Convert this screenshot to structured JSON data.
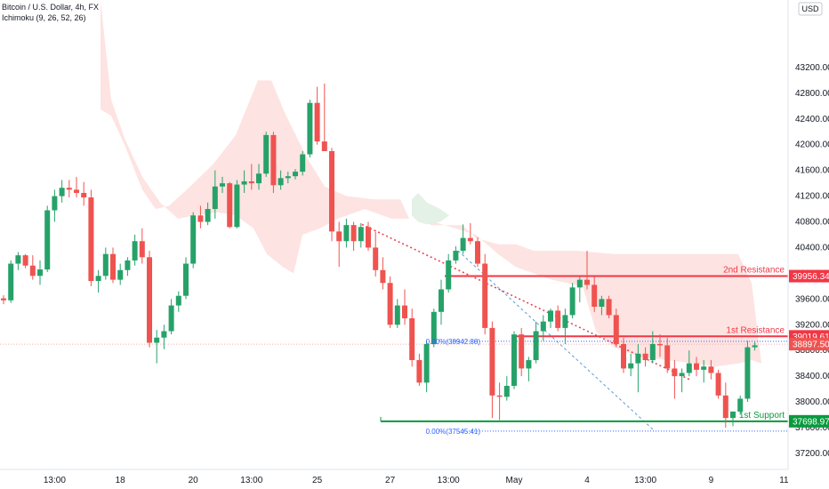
{
  "header": {
    "symbol": "Bitcoin / U.S. Dollar, 4h, FX",
    "indicator": "Ichimoku (9, 26, 52, 26)",
    "currency": "USD"
  },
  "chart_data": {
    "type": "candlestick",
    "y_axis": {
      "ylim": [
        36950,
        44250
      ],
      "ticks": [
        37200,
        37600,
        38000,
        38400,
        38800,
        39200,
        39600,
        40000,
        40400,
        40800,
        41200,
        41600,
        42000,
        42400,
        42800,
        43200
      ],
      "tick_labels": [
        "37200.00",
        "37600.00",
        "38000.00",
        "38400.00",
        "38800.00",
        "39200.00",
        "39600.00",
        "40000.00",
        "40400.00",
        "40800.00",
        "41200.00",
        "41600.00",
        "42000.00",
        "42400.00",
        "42800.00",
        "43200.00"
      ]
    },
    "x_axis": {
      "bars": 107,
      "ticks": [
        {
          "label": "13:00",
          "bar": 7
        },
        {
          "label": "18",
          "bar": 16
        },
        {
          "label": "20",
          "bar": 26
        },
        {
          "label": "13:00",
          "bar": 34
        },
        {
          "label": "25",
          "bar": 43
        },
        {
          "label": "27",
          "bar": 53
        },
        {
          "label": "13:00",
          "bar": 61
        },
        {
          "label": "May",
          "bar": 70
        },
        {
          "label": "4",
          "bar": 80
        },
        {
          "label": "13:00",
          "bar": 88
        },
        {
          "label": "9",
          "bar": 97
        },
        {
          "label": "11",
          "bar": 107
        }
      ]
    },
    "colors": {
      "up": "#26a269",
      "down": "#ef5350",
      "cloud_bear": "#fde3e1",
      "cloud_bull": "#e3f1e6",
      "resistance": "#f23645",
      "support": "#089a3d",
      "fib": "#2962ff"
    },
    "candles": [
      [
        39610,
        39660,
        39520,
        39580
      ],
      [
        39580,
        40200,
        39540,
        40150
      ],
      [
        40150,
        40330,
        40050,
        40280
      ],
      [
        40280,
        40300,
        40080,
        40120
      ],
      [
        40120,
        40280,
        39900,
        39960
      ],
      [
        39960,
        40200,
        39820,
        40060
      ],
      [
        40060,
        41050,
        40020,
        40980
      ],
      [
        40980,
        41300,
        40800,
        41200
      ],
      [
        41200,
        41450,
        41100,
        41330
      ],
      [
        41330,
        41450,
        41180,
        41300
      ],
      [
        41300,
        41500,
        41180,
        41250
      ],
      [
        41250,
        41420,
        41050,
        41180
      ],
      [
        41180,
        41300,
        39800,
        39880
      ],
      [
        39880,
        40050,
        39700,
        39960
      ],
      [
        39960,
        40400,
        39900,
        40300
      ],
      [
        40300,
        40400,
        39850,
        39900
      ],
      [
        39900,
        40150,
        39820,
        40050
      ],
      [
        40050,
        40250,
        39960,
        40200
      ],
      [
        40200,
        40600,
        40120,
        40500
      ],
      [
        40500,
        40700,
        40150,
        40250
      ],
      [
        40250,
        40350,
        38850,
        38920
      ],
      [
        38920,
        39120,
        38600,
        39000
      ],
      [
        39000,
        39200,
        38820,
        39100
      ],
      [
        39100,
        39600,
        39050,
        39500
      ],
      [
        39500,
        39720,
        39400,
        39650
      ],
      [
        39650,
        40250,
        39600,
        40150
      ],
      [
        40150,
        40950,
        40080,
        40900
      ],
      [
        40900,
        41050,
        40700,
        40800
      ],
      [
        40800,
        41100,
        40750,
        41000
      ],
      [
        41000,
        41600,
        40850,
        41350
      ],
      [
        41350,
        41500,
        41250,
        41400
      ],
      [
        41400,
        41420,
        40700,
        40720
      ],
      [
        40720,
        41450,
        40700,
        41380
      ],
      [
        41380,
        41600,
        41250,
        41430
      ],
      [
        41430,
        41700,
        41300,
        41400
      ],
      [
        41400,
        41700,
        41300,
        41550
      ],
      [
        41550,
        42200,
        41500,
        42150
      ],
      [
        42150,
        42200,
        41250,
        41370
      ],
      [
        41370,
        41600,
        41300,
        41480
      ],
      [
        41480,
        41580,
        41400,
        41510
      ],
      [
        41510,
        41620,
        41460,
        41580
      ],
      [
        41580,
        41900,
        41520,
        41850
      ],
      [
        41850,
        42700,
        41800,
        42650
      ],
      [
        42650,
        42900,
        42000,
        42050
      ],
      [
        42050,
        42950,
        41950,
        41900
      ],
      [
        41900,
        41950,
        40500,
        40650
      ],
      [
        40650,
        40800,
        40100,
        40500
      ],
      [
        40500,
        40850,
        40400,
        40750
      ],
      [
        40750,
        40800,
        40350,
        40500
      ],
      [
        40500,
        40780,
        40400,
        40720
      ],
      [
        40720,
        40800,
        40350,
        40400
      ],
      [
        40400,
        40650,
        39950,
        40050
      ],
      [
        40050,
        40250,
        39750,
        39850
      ],
      [
        39850,
        39950,
        39150,
        39200
      ],
      [
        39200,
        39600,
        39150,
        39500
      ],
      [
        39500,
        39750,
        39200,
        39300
      ],
      [
        39300,
        39450,
        38550,
        38650
      ],
      [
        38650,
        38750,
        38250,
        38300
      ],
      [
        38300,
        38950,
        38150,
        38900
      ],
      [
        38900,
        39450,
        38850,
        39400
      ],
      [
        39400,
        39900,
        39200,
        39750
      ],
      [
        39750,
        40300,
        39700,
        40200
      ],
      [
        40200,
        40420,
        40150,
        40350
      ],
      [
        40350,
        40760,
        40300,
        40550
      ],
      [
        40550,
        40780,
        40450,
        40500
      ],
      [
        40500,
        40560,
        40100,
        40150
      ],
      [
        40150,
        40300,
        39050,
        39150
      ],
      [
        39150,
        39250,
        37750,
        38100
      ],
      [
        38100,
        38300,
        37720,
        38080
      ],
      [
        38080,
        38400,
        38020,
        38250
      ],
      [
        38250,
        39100,
        38200,
        39050
      ],
      [
        39050,
        39150,
        38400,
        38520
      ],
      [
        38520,
        38700,
        38320,
        38650
      ],
      [
        38650,
        39250,
        38600,
        39100
      ],
      [
        39100,
        39350,
        38950,
        39250
      ],
      [
        39250,
        39450,
        39150,
        39420
      ],
      [
        39420,
        39500,
        39100,
        39150
      ],
      [
        39150,
        39450,
        38900,
        39350
      ],
      [
        39350,
        39850,
        39300,
        39780
      ],
      [
        39780,
        39950,
        39550,
        39900
      ],
      [
        39900,
        40350,
        39750,
        39820
      ],
      [
        39820,
        39950,
        39400,
        39480
      ],
      [
        39480,
        39650,
        39350,
        39600
      ],
      [
        39600,
        39650,
        39300,
        39350
      ],
      [
        39350,
        39450,
        38850,
        38900
      ],
      [
        38900,
        39000,
        38450,
        38520
      ],
      [
        38520,
        38750,
        38400,
        38600
      ],
      [
        38600,
        38900,
        38150,
        38750
      ],
      [
        38750,
        38850,
        38550,
        38650
      ],
      [
        38650,
        39100,
        38600,
        38900
      ],
      [
        38900,
        39050,
        38700,
        38880
      ],
      [
        38880,
        39000,
        38450,
        38520
      ],
      [
        38520,
        38650,
        38050,
        38400
      ],
      [
        38400,
        38520,
        38150,
        38450
      ],
      [
        38450,
        38800,
        38400,
        38600
      ],
      [
        38600,
        38700,
        38400,
        38500
      ],
      [
        38500,
        38650,
        38300,
        38550
      ],
      [
        38550,
        38650,
        38350,
        38450
      ],
      [
        38450,
        38500,
        38050,
        38100
      ],
      [
        38100,
        38300,
        37600,
        37750
      ],
      [
        37750,
        37850,
        37620,
        37850
      ],
      [
        37850,
        38100,
        37800,
        38050
      ],
      [
        38050,
        38950,
        38000,
        38850
      ],
      [
        38850,
        38930,
        38800,
        38880
      ]
    ],
    "levels": [
      {
        "name": "2nd Resistance",
        "value": 39956.34,
        "label": "39956.34"
      },
      {
        "name": "1st Resistance",
        "value": 39019.61,
        "label": "39019.61"
      },
      {
        "name": "1st Support",
        "value": 37698.97,
        "label": "37698.97"
      }
    ],
    "price_tag": {
      "value": 38897.5,
      "label": "38897.50"
    },
    "fib_levels": [
      {
        "label": "0.00%(38942.88)",
        "value": 38942.88
      },
      {
        "label": "0.00%(37545.41)",
        "value": 37545.41
      }
    ]
  }
}
